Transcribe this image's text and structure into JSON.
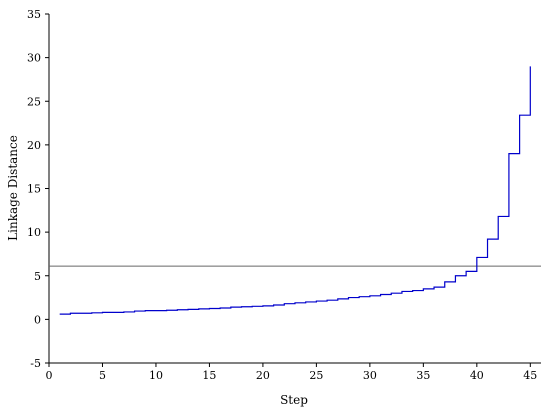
{
  "chart_data": {
    "type": "line",
    "step": true,
    "xlabel": "Step",
    "ylabel": "Linkage Distance",
    "xlim": [
      0,
      46
    ],
    "ylim": [
      -5,
      35
    ],
    "xticks": [
      0,
      5,
      10,
      15,
      20,
      25,
      30,
      35,
      40,
      45
    ],
    "yticks": [
      -5,
      0,
      5,
      10,
      15,
      20,
      25,
      30,
      35
    ],
    "grid": false,
    "legend": "none",
    "line_color": "#0000cc",
    "threshold": {
      "y": 6.1,
      "color": "#666666"
    },
    "series": [
      {
        "x": [
          1,
          2,
          3,
          4,
          5,
          6,
          7,
          8,
          9,
          10,
          11,
          12,
          13,
          14,
          15,
          16,
          17,
          18,
          19,
          20,
          21,
          22,
          23,
          24,
          25,
          26,
          27,
          28,
          29,
          30,
          31,
          32,
          33,
          34,
          35,
          36,
          37,
          38,
          39,
          40,
          41,
          42,
          43,
          44,
          45
        ],
        "values": [
          0.6,
          0.7,
          0.7,
          0.75,
          0.8,
          0.8,
          0.85,
          0.95,
          1.0,
          1.0,
          1.05,
          1.1,
          1.15,
          1.2,
          1.25,
          1.3,
          1.4,
          1.45,
          1.5,
          1.55,
          1.65,
          1.8,
          1.9,
          2.0,
          2.1,
          2.2,
          2.35,
          2.5,
          2.6,
          2.7,
          2.85,
          3.0,
          3.2,
          3.3,
          3.5,
          3.7,
          4.3,
          5.0,
          5.5,
          7.1,
          9.2,
          11.8,
          19.0,
          23.4,
          29.0
        ]
      }
    ]
  }
}
